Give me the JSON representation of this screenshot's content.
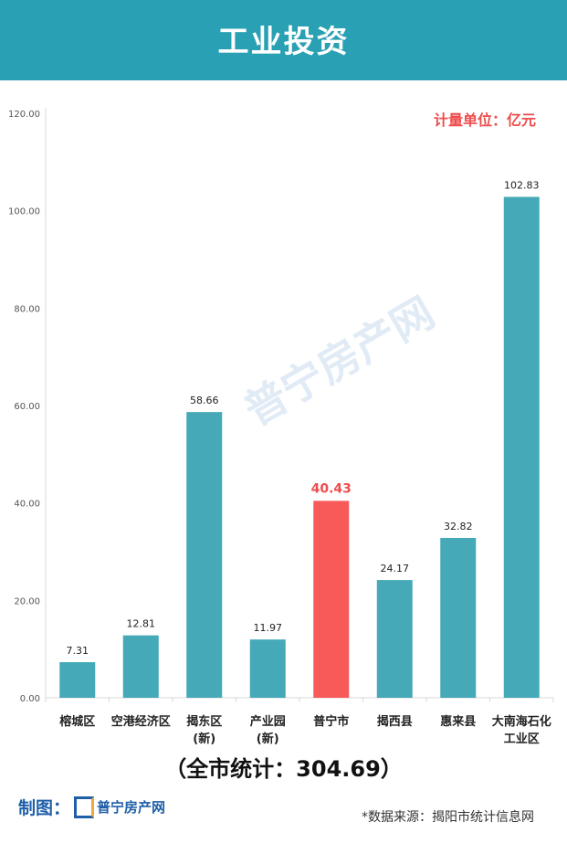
{
  "header": {
    "title": "工业投资"
  },
  "unit_label": "计量单位：亿元",
  "total_label": "（全市统计：304.69）",
  "footer": {
    "maker_label": "制图：",
    "logo_text": "普宁房产网",
    "source": "*数据来源：揭阳市统计信息网"
  },
  "watermark": "普宁房产网",
  "chart_data": {
    "type": "bar",
    "categories": [
      "榕城区",
      "空港经济区",
      "揭东区\n(新)",
      "产业园\n(新)",
      "普宁市",
      "揭西县",
      "惠来县",
      "大南海石化\n工业区"
    ],
    "values": [
      7.31,
      12.81,
      58.66,
      11.97,
      40.43,
      24.17,
      32.82,
      102.83
    ],
    "value_labels": [
      "7.31",
      "12.81",
      "58.66",
      "11.97",
      "40.43",
      "24.17",
      "32.82",
      "102.83"
    ],
    "ylim": [
      0,
      120
    ],
    "yticks": [
      "0.00",
      "20.00",
      "40.00",
      "60.00",
      "80.00",
      "100.00",
      "120.00"
    ],
    "grid": false,
    "colors": {
      "default": "#45a9b8",
      "highlight": "#f85a5a",
      "highlight_label": "#ee4c4c"
    },
    "highlight_index": 4
  }
}
